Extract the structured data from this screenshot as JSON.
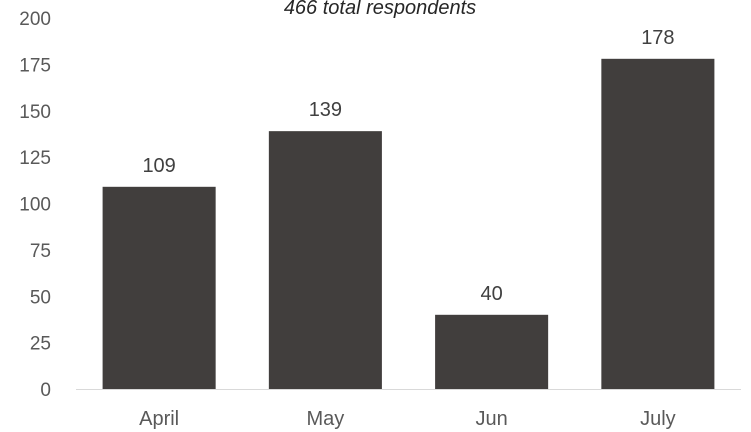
{
  "chart_data": {
    "type": "bar",
    "title": "",
    "subtitle": "466 total respondents",
    "xlabel": "",
    "ylabel": "",
    "categories": [
      "April",
      "May",
      "Jun",
      "July"
    ],
    "values": [
      109,
      139,
      40,
      178
    ],
    "ylim": [
      0,
      200
    ],
    "yticks": [
      0,
      25,
      50,
      75,
      100,
      125,
      150,
      175,
      200
    ],
    "grid": false,
    "legend": "none",
    "data_labels": true,
    "colors": {
      "bar": "#413e3d",
      "axis_line": "#d9d9d9",
      "tick_text": "#595959"
    }
  }
}
